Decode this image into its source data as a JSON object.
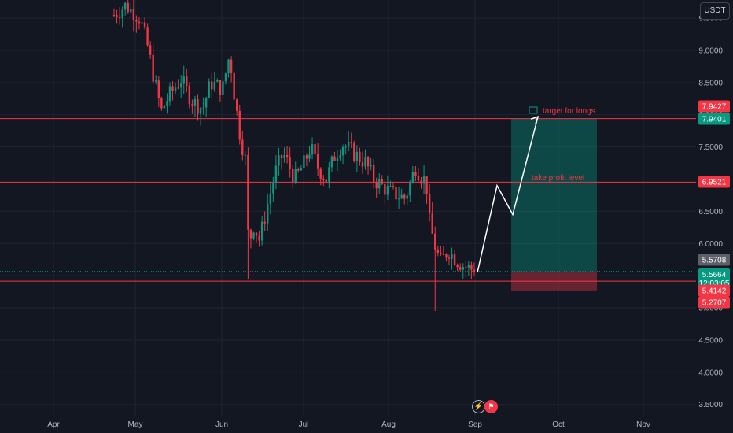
{
  "currency_label": "USDT",
  "chart_data": {
    "type": "candlestick",
    "y_ticks": [
      "9.5000",
      "9.0000",
      "8.5000",
      "8.0000",
      "7.5000",
      "7.0000",
      "6.5000",
      "6.0000",
      "5.5000",
      "5.0000",
      "4.5000",
      "4.0000",
      "3.5000"
    ],
    "x_ticks": [
      "Apr",
      "May",
      "Jun",
      "Jul",
      "Aug",
      "Sep",
      "Oct",
      "Nov"
    ],
    "levels": [
      {
        "label": "7.9427",
        "value": 7.9427,
        "color": "#f23645"
      },
      {
        "label": "7.9401",
        "value": 7.9401,
        "color": "#089981"
      },
      {
        "label": "6.9521",
        "value": 6.9521,
        "color": "#f23645"
      },
      {
        "label": "5.5708",
        "value": 5.5708,
        "color": "#5d606b"
      },
      {
        "label": "5.5664",
        "value": 5.5664,
        "color": "#089981",
        "sublabel": "12:03:05"
      },
      {
        "label": "5.4142",
        "value": 5.4142,
        "color": "#f23645"
      },
      {
        "label": "5.2707",
        "value": 5.2707,
        "color": "#f23645"
      }
    ],
    "annotations": {
      "target_label": "target for longs",
      "take_profit_label": "take profit level"
    },
    "position": {
      "entry": 5.5664,
      "target": 7.9401,
      "stop": 5.2707,
      "start": "Aug 25",
      "end": "Sep 30"
    },
    "projection": [
      {
        "date": "Sep 1",
        "price": 5.55
      },
      {
        "date": "Sep 9",
        "price": 6.9
      },
      {
        "date": "Sep 15",
        "price": 6.45
      },
      {
        "date": "Sep 24",
        "price": 7.97
      }
    ],
    "colors": {
      "up": "#089981",
      "down": "#f23645",
      "background": "#131722",
      "grid": "#1f2433"
    }
  }
}
